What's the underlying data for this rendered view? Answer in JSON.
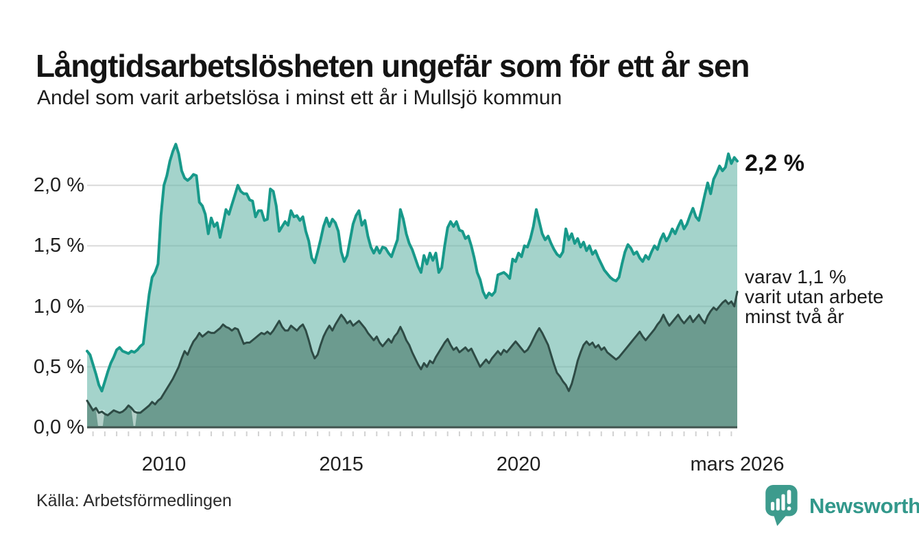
{
  "header": {
    "title": "Långtidsarbetslösheten ungefär som för ett år sen",
    "subtitle": "Andel som varit arbetslösa i minst ett år i Mullsjö kommun"
  },
  "chart": {
    "annotations": {
      "primary": "2,2 %",
      "secondary_lines": [
        "varav 1,1 %",
        "varit utan arbete",
        "minst två år"
      ]
    }
  },
  "chart_data": {
    "type": "area",
    "title": "Långtidsarbetslösheten ungefär som för ett år sen",
    "subtitle": "Andel som varit arbetslösa i minst ett år i Mullsjö kommun",
    "unit": "%",
    "frequency": "monthly",
    "x_start": "2007-11",
    "x_end": "2026-03",
    "ylim": [
      0,
      2.45
    ],
    "grid": true,
    "y_axis": {
      "tick_values": [
        0,
        0.5,
        1.0,
        1.5,
        2.0
      ],
      "tick_labels": [
        "0,0 %",
        "0,5 %",
        "1,0 %",
        "1,5 %",
        "2,0 %"
      ]
    },
    "x_axis": {
      "ticks": [
        {
          "label": "2010",
          "month_index": 26
        },
        {
          "label": "2015",
          "month_index": 86
        },
        {
          "label": "2020",
          "month_index": 146
        },
        {
          "label": "mars 2026",
          "month_index": 220
        }
      ],
      "minor_tick_every_months": 4
    },
    "colors": {
      "line_1yr": "#18998a",
      "fill_1yr": "rgba(104,181,169,0.60)",
      "line_2yr": "#2e4b45",
      "fill_2yr": "rgba(62,110,95,0.55)",
      "gridline": "#d9d9d9",
      "baseline": "#41544f",
      "minor_tick": "#d2d2d2"
    },
    "series": [
      {
        "name": "Andel arbetslösa minst ett år",
        "end_label": "2,2 %",
        "end_value": 2.2,
        "values": [
          0.63,
          0.6,
          0.52,
          0.44,
          0.35,
          0.3,
          0.38,
          0.46,
          0.53,
          0.58,
          0.64,
          0.66,
          0.63,
          0.62,
          0.61,
          0.63,
          0.62,
          0.64,
          0.67,
          0.69,
          0.9,
          1.1,
          1.24,
          1.28,
          1.35,
          1.75,
          2.0,
          2.08,
          2.2,
          2.28,
          2.34,
          2.26,
          2.12,
          2.06,
          2.04,
          2.06,
          2.09,
          2.08,
          1.86,
          1.83,
          1.76,
          1.6,
          1.73,
          1.66,
          1.69,
          1.57,
          1.68,
          1.8,
          1.76,
          1.84,
          1.92,
          2.0,
          1.95,
          1.93,
          1.93,
          1.88,
          1.87,
          1.74,
          1.79,
          1.79,
          1.71,
          1.72,
          1.97,
          1.95,
          1.83,
          1.62,
          1.66,
          1.7,
          1.67,
          1.79,
          1.74,
          1.75,
          1.71,
          1.74,
          1.62,
          1.54,
          1.4,
          1.36,
          1.45,
          1.55,
          1.66,
          1.73,
          1.66,
          1.72,
          1.69,
          1.62,
          1.45,
          1.37,
          1.42,
          1.55,
          1.68,
          1.75,
          1.79,
          1.67,
          1.71,
          1.58,
          1.49,
          1.44,
          1.49,
          1.44,
          1.49,
          1.48,
          1.44,
          1.41,
          1.48,
          1.55,
          1.8,
          1.72,
          1.6,
          1.52,
          1.47,
          1.4,
          1.33,
          1.28,
          1.42,
          1.35,
          1.44,
          1.38,
          1.44,
          1.28,
          1.32,
          1.5,
          1.65,
          1.7,
          1.66,
          1.7,
          1.63,
          1.62,
          1.56,
          1.58,
          1.5,
          1.4,
          1.28,
          1.22,
          1.12,
          1.07,
          1.11,
          1.09,
          1.12,
          1.26,
          1.27,
          1.28,
          1.26,
          1.23,
          1.39,
          1.37,
          1.44,
          1.41,
          1.5,
          1.49,
          1.56,
          1.66,
          1.8,
          1.7,
          1.6,
          1.55,
          1.58,
          1.52,
          1.47,
          1.43,
          1.41,
          1.45,
          1.64,
          1.55,
          1.6,
          1.52,
          1.56,
          1.49,
          1.53,
          1.46,
          1.5,
          1.43,
          1.46,
          1.4,
          1.35,
          1.3,
          1.27,
          1.24,
          1.22,
          1.21,
          1.24,
          1.35,
          1.45,
          1.51,
          1.48,
          1.43,
          1.45,
          1.4,
          1.37,
          1.42,
          1.39,
          1.45,
          1.5,
          1.47,
          1.55,
          1.6,
          1.54,
          1.58,
          1.64,
          1.6,
          1.66,
          1.71,
          1.64,
          1.68,
          1.75,
          1.81,
          1.74,
          1.71,
          1.81,
          1.92,
          2.02,
          1.93,
          2.05,
          2.1,
          2.16,
          2.12,
          2.15,
          2.26,
          2.18,
          2.23,
          2.2
        ]
      },
      {
        "name": "varav utan arbete minst två år",
        "end_label": "1,1 %",
        "end_value": 1.1,
        "values": [
          0.22,
          0.18,
          0.14,
          0.16,
          0.12,
          0.13,
          0.11,
          0.1,
          0.12,
          0.14,
          0.13,
          0.12,
          0.13,
          0.15,
          0.18,
          0.16,
          0.13,
          0.12,
          0.12,
          0.14,
          0.16,
          0.18,
          0.21,
          0.19,
          0.22,
          0.24,
          0.28,
          0.32,
          0.36,
          0.4,
          0.45,
          0.5,
          0.57,
          0.63,
          0.6,
          0.66,
          0.71,
          0.74,
          0.78,
          0.75,
          0.77,
          0.79,
          0.78,
          0.78,
          0.8,
          0.82,
          0.85,
          0.83,
          0.82,
          0.8,
          0.82,
          0.81,
          0.75,
          0.69,
          0.7,
          0.7,
          0.72,
          0.74,
          0.76,
          0.78,
          0.77,
          0.79,
          0.77,
          0.8,
          0.84,
          0.88,
          0.83,
          0.8,
          0.8,
          0.84,
          0.82,
          0.8,
          0.83,
          0.85,
          0.8,
          0.72,
          0.63,
          0.57,
          0.6,
          0.68,
          0.75,
          0.8,
          0.84,
          0.8,
          0.85,
          0.89,
          0.93,
          0.9,
          0.86,
          0.88,
          0.84,
          0.86,
          0.88,
          0.85,
          0.82,
          0.78,
          0.75,
          0.72,
          0.75,
          0.7,
          0.67,
          0.7,
          0.73,
          0.7,
          0.75,
          0.78,
          0.83,
          0.78,
          0.72,
          0.68,
          0.62,
          0.57,
          0.52,
          0.48,
          0.53,
          0.5,
          0.55,
          0.53,
          0.58,
          0.62,
          0.66,
          0.7,
          0.73,
          0.68,
          0.64,
          0.66,
          0.62,
          0.64,
          0.66,
          0.63,
          0.65,
          0.6,
          0.55,
          0.5,
          0.53,
          0.56,
          0.53,
          0.57,
          0.6,
          0.63,
          0.6,
          0.64,
          0.62,
          0.65,
          0.68,
          0.71,
          0.68,
          0.65,
          0.62,
          0.64,
          0.68,
          0.73,
          0.78,
          0.82,
          0.78,
          0.73,
          0.68,
          0.6,
          0.52,
          0.45,
          0.42,
          0.38,
          0.35,
          0.3,
          0.36,
          0.45,
          0.55,
          0.62,
          0.68,
          0.71,
          0.68,
          0.7,
          0.66,
          0.68,
          0.64,
          0.66,
          0.62,
          0.6,
          0.58,
          0.56,
          0.58,
          0.61,
          0.64,
          0.67,
          0.7,
          0.73,
          0.76,
          0.79,
          0.75,
          0.72,
          0.75,
          0.78,
          0.81,
          0.85,
          0.88,
          0.93,
          0.88,
          0.84,
          0.87,
          0.9,
          0.93,
          0.89,
          0.86,
          0.89,
          0.92,
          0.87,
          0.9,
          0.93,
          0.89,
          0.86,
          0.92,
          0.96,
          0.99,
          0.97,
          1.0,
          1.03,
          1.05,
          1.02,
          1.04,
          1.0,
          1.12
        ]
      }
    ],
    "data_gaps_2yr_month_ranges": [
      [
        3,
        6
      ],
      [
        15,
        17
      ]
    ]
  },
  "footer": {
    "source": "Källa: Arbetsförmedlingen",
    "brand": "Newsworthy",
    "brand_color": "#32988b"
  }
}
